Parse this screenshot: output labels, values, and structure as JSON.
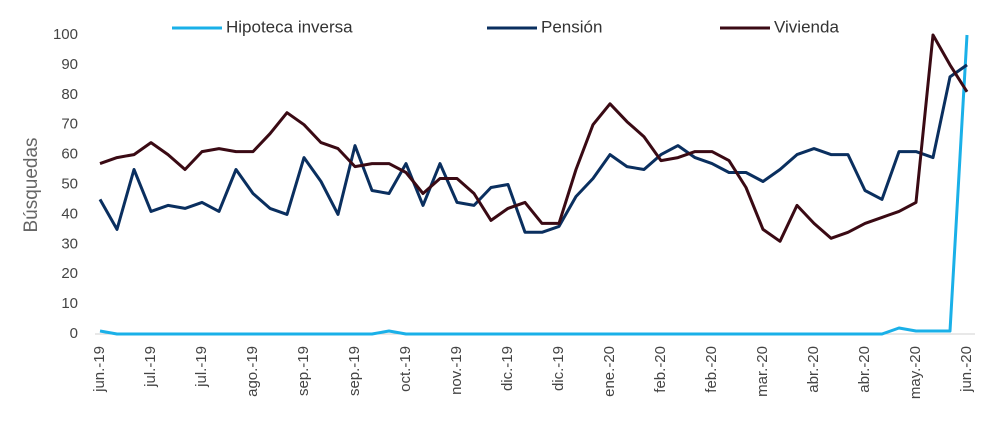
{
  "chart_data": {
    "type": "line",
    "ylabel": "Búsquedas",
    "categories": [
      "jun.-19",
      null,
      null,
      "jul.-19",
      null,
      null,
      "jul.-19",
      null,
      null,
      "ago.-19",
      null,
      null,
      "sep.-19",
      null,
      null,
      "sep.-19",
      null,
      null,
      "oct.-19",
      null,
      null,
      "nov.-19",
      null,
      null,
      "dic.-19",
      null,
      null,
      "dic.-19",
      null,
      null,
      "ene.-20",
      null,
      null,
      "feb.-20",
      null,
      null,
      "feb.-20",
      null,
      null,
      "mar.-20",
      null,
      null,
      "abr.-20",
      null,
      null,
      "abr.-20",
      null,
      null,
      "may.-20",
      null,
      null,
      "jun.-20"
    ],
    "series": [
      {
        "name": "Hipoteca inversa",
        "color": "#1ab0e8",
        "values": [
          1,
          0,
          0,
          0,
          0,
          0,
          0,
          0,
          0,
          0,
          0,
          0,
          0,
          0,
          0,
          0,
          0,
          1,
          0,
          0,
          0,
          0,
          0,
          0,
          0,
          0,
          0,
          0,
          0,
          0,
          0,
          0,
          0,
          0,
          0,
          0,
          0,
          0,
          0,
          0,
          0,
          0,
          0,
          0,
          0,
          0,
          0,
          2,
          1,
          1,
          1,
          100
        ]
      },
      {
        "name": "Pensión",
        "color": "#0a2f5f",
        "values": [
          45,
          35,
          55,
          41,
          43,
          42,
          44,
          41,
          55,
          47,
          42,
          40,
          59,
          51,
          40,
          63,
          48,
          47,
          57,
          43,
          57,
          44,
          43,
          49,
          50,
          34,
          34,
          36,
          46,
          52,
          60,
          56,
          55,
          60,
          63,
          59,
          57,
          54,
          54,
          51,
          55,
          60,
          62,
          60,
          60,
          48,
          45,
          61,
          61,
          59,
          86,
          90
        ]
      },
      {
        "name": "Vivienda",
        "color": "#3a0a14",
        "values": [
          57,
          59,
          60,
          64,
          60,
          55,
          61,
          62,
          61,
          61,
          67,
          74,
          70,
          64,
          62,
          56,
          57,
          57,
          54,
          47,
          52,
          52,
          47,
          38,
          42,
          44,
          37,
          37,
          55,
          70,
          77,
          71,
          66,
          58,
          59,
          61,
          61,
          58,
          49,
          35,
          31,
          43,
          37,
          32,
          34,
          37,
          39,
          41,
          44,
          100,
          90,
          81
        ]
      }
    ],
    "ylim": [
      0,
      100
    ],
    "yticks": [
      0,
      10,
      20,
      30,
      40,
      50,
      60,
      70,
      80,
      90,
      100
    ],
    "legend": "top",
    "grid": false
  }
}
